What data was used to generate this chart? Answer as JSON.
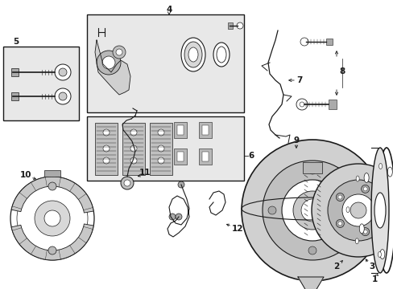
{
  "background_color": "#ffffff",
  "line_color": "#1a1a1a",
  "box_fill": "#e8e8e8",
  "fig_width": 4.89,
  "fig_height": 3.6,
  "dpi": 100,
  "label_fontsize": 7.5,
  "label_bold": true
}
